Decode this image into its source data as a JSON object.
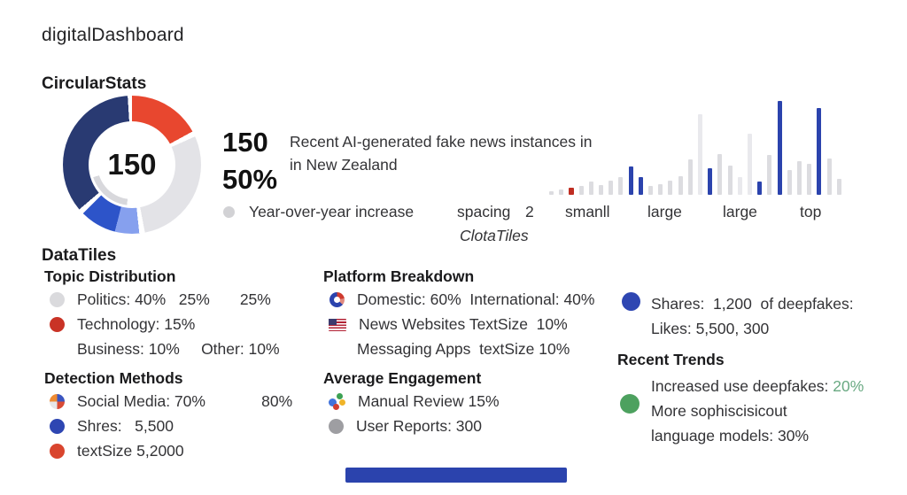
{
  "title": "digitalDashboard",
  "colors": {
    "accent_blue": "#2B43AD",
    "accent_red": "#C93326",
    "accent_green": "#4DA15F",
    "navy": "#293A72",
    "light_gray": "#E3E3E7"
  },
  "circular": {
    "heading": "CircularStats",
    "center_value": "150",
    "stat_value": "150",
    "stat_percent": "50%",
    "description_line1": "Recent AI-generated fake news instances in",
    "description_line2": "in New Zealand",
    "legend_label": "Year-over-year increase",
    "caption": "ClotaTiles"
  },
  "axis_row": {
    "spacing_label": "spacing",
    "spacing_value": "2",
    "tick1": "smanll",
    "tick2": "large",
    "tick3": "large",
    "tick4": "top"
  },
  "chart_data": [
    {
      "type": "pie",
      "subtype": "donut",
      "title": "CircularStats",
      "center_label": "150",
      "legend_position": "none",
      "segments_clockwise_from_top": [
        {
          "name": "red",
          "value": 17,
          "color": "#E8472F"
        },
        {
          "name": "light-gray",
          "value": 29,
          "color": "#E3E3E7"
        },
        {
          "name": "light-blue",
          "value": 6,
          "color": "#86A0EE"
        },
        {
          "name": "medium-blue",
          "value": 8.5,
          "color": "#2D54C9"
        },
        {
          "name": "navy",
          "value": 35.5,
          "color": "#293A72"
        }
      ],
      "inner_arc": {
        "color": "#D8D8DC",
        "from_pct": 52,
        "to_pct": 70
      }
    },
    {
      "type": "bar",
      "title": "Recent AI-generated fake news instances in in New Zealand",
      "legend": "Year-over-year increase",
      "x_labels": [
        "smanll",
        "large",
        "large",
        "top"
      ],
      "ylim": [
        0,
        110
      ],
      "grid": false,
      "palette": {
        "gray": "#DCDCE0",
        "lightgray": "#E9E9ED",
        "blue": "#2B43AD",
        "red": "#BF2D22"
      },
      "bars": [
        {
          "v": 4,
          "c": "gray"
        },
        {
          "v": 6,
          "c": "gray"
        },
        {
          "v": 8,
          "c": "red"
        },
        {
          "v": 10,
          "c": "gray"
        },
        {
          "v": 15,
          "c": "gray"
        },
        {
          "v": 11,
          "c": "gray"
        },
        {
          "v": 16,
          "c": "gray"
        },
        {
          "v": 20,
          "c": "gray"
        },
        {
          "v": 32,
          "c": "blue"
        },
        {
          "v": 20,
          "c": "blue"
        },
        {
          "v": 10,
          "c": "gray"
        },
        {
          "v": 12,
          "c": "gray"
        },
        {
          "v": 16,
          "c": "gray"
        },
        {
          "v": 21,
          "c": "gray"
        },
        {
          "v": 40,
          "c": "gray"
        },
        {
          "v": 91,
          "c": "lightgray"
        },
        {
          "v": 30,
          "c": "blue"
        },
        {
          "v": 46,
          "c": "gray"
        },
        {
          "v": 33,
          "c": "gray"
        },
        {
          "v": 20,
          "c": "lightgray"
        },
        {
          "v": 69,
          "c": "lightgray"
        },
        {
          "v": 15,
          "c": "blue"
        },
        {
          "v": 45,
          "c": "gray"
        },
        {
          "v": 106,
          "c": "blue"
        },
        {
          "v": 28,
          "c": "gray"
        },
        {
          "v": 38,
          "c": "gray"
        },
        {
          "v": 35,
          "c": "gray"
        },
        {
          "v": 98,
          "c": "blue"
        },
        {
          "v": 41,
          "c": "gray"
        },
        {
          "v": 18,
          "c": "gray"
        }
      ]
    }
  ],
  "tiles": {
    "heading": "DataTiles",
    "topic": {
      "title": "Topic Distribution",
      "rows": [
        {
          "text": "Politics: 40%   25%       25%"
        },
        {
          "text": "Technology: 15%"
        },
        {
          "text": "Business: 10%     Other: 10%"
        }
      ]
    },
    "platform": {
      "title": "Platform Breakdown",
      "rows": [
        {
          "text": "Domestic: 60%  International: 40%"
        },
        {
          "text": "News Websites TextSize  10%"
        },
        {
          "text": "Messaging Apps  textSize 10%"
        }
      ]
    },
    "detection": {
      "title": "Detection Methods",
      "rows": [
        {
          "text": "Social Media: 70%             80%"
        },
        {
          "text": "Shres:   5,500"
        },
        {
          "text": "textSize 5,2000"
        }
      ]
    },
    "engagement": {
      "title": "Average Engagement",
      "rows": [
        {
          "text": "Manual Review 15%"
        },
        {
          "text": "User Reports: 300"
        }
      ]
    }
  },
  "right_column": {
    "shares_line1": "Shares:  1,200  of deepfakes:",
    "shares_line2": "Likes: 5,500, 300",
    "trends_title": "Recent Trends",
    "trend1_prefix": "Increased use deepfakes: ",
    "trend1_value": "20%",
    "trend2": "More sophiscisicout",
    "trend3": "language models: 30%"
  }
}
